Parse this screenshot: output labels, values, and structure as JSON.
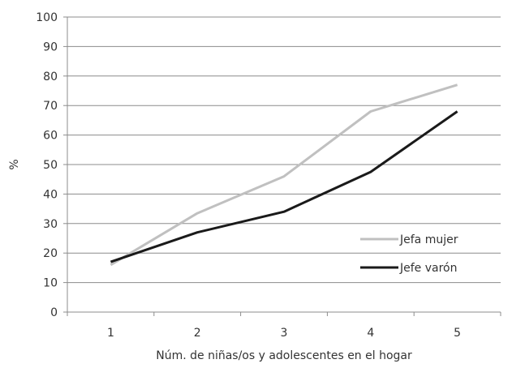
{
  "chart_data": {
    "type": "line",
    "title": "",
    "xlabel": "Núm. de niñas/os y adolescentes en el hogar",
    "ylabel": "%",
    "x": [
      1,
      2,
      3,
      4,
      5
    ],
    "x_tick_labels": [
      "1",
      "2",
      "3",
      "4",
      "5"
    ],
    "ylim": [
      0,
      100
    ],
    "y_ticks": [
      0,
      10,
      20,
      30,
      40,
      50,
      60,
      70,
      80,
      90,
      100
    ],
    "grid": "horizontal",
    "legend_position": "right",
    "series": [
      {
        "name": "Jefa mujer",
        "color": "#c0c0c0",
        "values": [
          16,
          33.5,
          46,
          68,
          77
        ]
      },
      {
        "name": "Jefe varón",
        "color": "#1a1a1a",
        "values": [
          17,
          27,
          34,
          47.5,
          68
        ]
      }
    ]
  }
}
